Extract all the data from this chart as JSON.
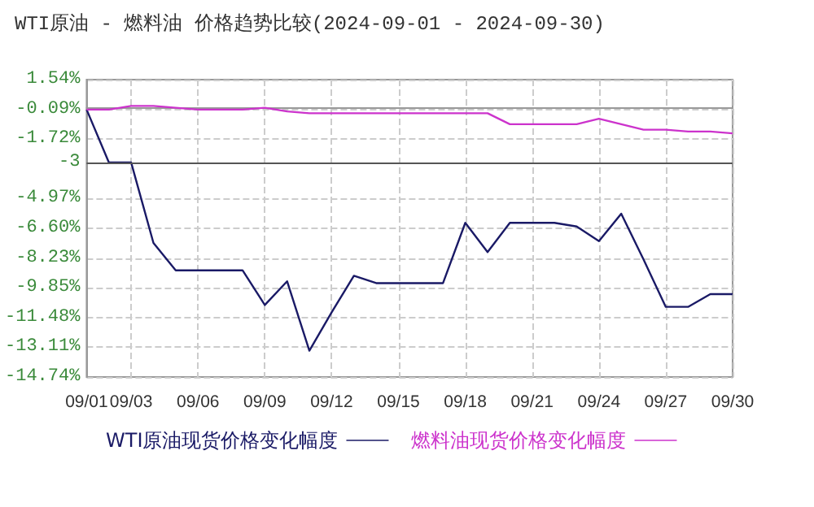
{
  "chart_data": {
    "type": "line",
    "title": "WTI原油 - 燃料油 价格趋势比较(2024-09-01 - 2024-09-30)",
    "categories": [
      "09/01",
      null,
      "09/03",
      null,
      null,
      "09/06",
      null,
      null,
      "09/09",
      null,
      null,
      "09/12",
      null,
      null,
      "09/15",
      null,
      null,
      "09/18",
      null,
      null,
      "09/21",
      null,
      null,
      "09/24",
      null,
      null,
      "09/27",
      null,
      null,
      "09/30"
    ],
    "series": [
      {
        "name": "WTI原油现货价格变化幅度",
        "color": "#1a1a66",
        "values": [
          -0.1,
          -3.0,
          -3.0,
          -7.4,
          -8.9,
          -8.9,
          -8.9,
          -8.9,
          -10.8,
          -9.5,
          -13.3,
          -11.2,
          -9.2,
          -9.6,
          -9.6,
          -9.6,
          -9.6,
          -6.3,
          -7.9,
          -6.3,
          -6.3,
          -6.3,
          -6.5,
          -7.3,
          -5.8,
          -8.3,
          -10.9,
          -10.9,
          -10.2,
          -10.2
        ]
      },
      {
        "name": "燃料油现货价格变化幅度",
        "color": "#cc33cc",
        "values": [
          -0.1,
          -0.1,
          0.1,
          0.1,
          0.0,
          -0.1,
          -0.1,
          -0.1,
          0.0,
          -0.2,
          -0.3,
          -0.3,
          -0.3,
          -0.3,
          -0.3,
          -0.3,
          -0.3,
          -0.3,
          -0.3,
          -0.9,
          -0.9,
          -0.9,
          -0.9,
          -0.6,
          -0.9,
          -1.2,
          -1.2,
          -1.3,
          -1.3,
          -1.4
        ]
      }
    ],
    "ylim": [
      -14.74,
      1.54
    ],
    "yticks": [
      {
        "value": 1.54,
        "label": "1.54%"
      },
      {
        "value": -0.09,
        "label": "-0.09%"
      },
      {
        "value": -1.72,
        "label": "-1.72%"
      },
      {
        "value": -3,
        "label": "-3"
      },
      {
        "value": -4.97,
        "label": "-4.97%"
      },
      {
        "value": -6.6,
        "label": "-6.60%"
      },
      {
        "value": -8.23,
        "label": "-8.23%"
      },
      {
        "value": -9.85,
        "label": "-9.85%"
      },
      {
        "value": -11.48,
        "label": "-11.48%"
      },
      {
        "value": -13.11,
        "label": "-13.11%"
      },
      {
        "value": -14.74,
        "label": "-14.74%"
      }
    ],
    "ref_lines": [
      {
        "axis": "y",
        "value": -3,
        "color": "#555555"
      }
    ],
    "grid": true,
    "legend": "bottom",
    "marker": "none",
    "line_style": "solid"
  }
}
